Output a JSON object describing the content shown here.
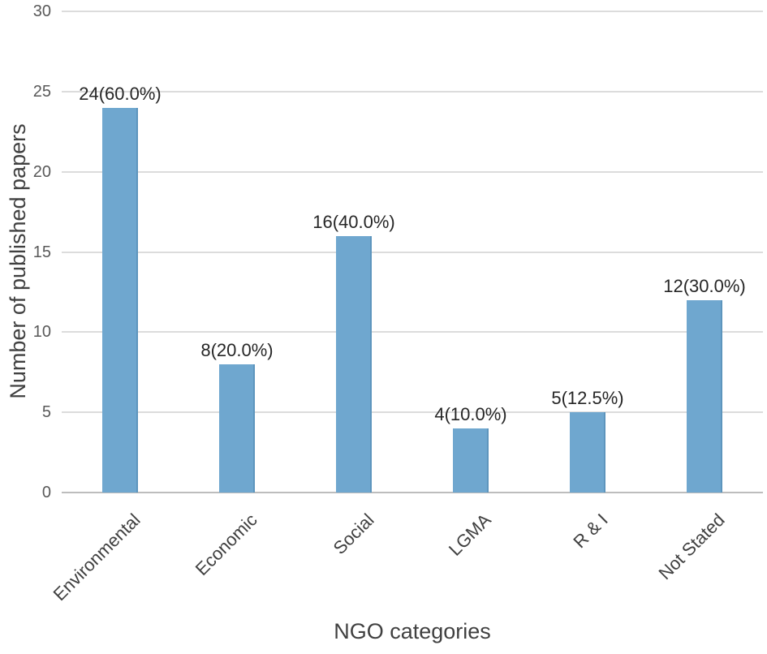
{
  "chart_data": {
    "type": "bar",
    "title": "",
    "xlabel": "NGO categories",
    "ylabel": "Number of published papers",
    "categories": [
      "Environmental",
      "Economic",
      "Social",
      "LGMA",
      "R & I",
      "Not Stated"
    ],
    "values": [
      24,
      8,
      16,
      4,
      5,
      12
    ],
    "value_labels": [
      "24(60.0%)",
      "8(20.0%)",
      "16(40.0%)",
      "4(10.0%)",
      "5(12.5%)",
      "12(30.0%)"
    ],
    "yticks": [
      0,
      5,
      10,
      15,
      20,
      25,
      30
    ],
    "ylim": [
      0,
      30
    ],
    "grid": true,
    "legend": "none",
    "colors": {
      "bar_fill": "#6fa7cf",
      "bar_edge": "#5d95bd",
      "gridline": "#dcdcdc",
      "axis_line": "#bdbdbd",
      "tick_label": "#595959",
      "value_label": "#262626",
      "axis_title": "#404040",
      "background": "#ffffff"
    }
  }
}
